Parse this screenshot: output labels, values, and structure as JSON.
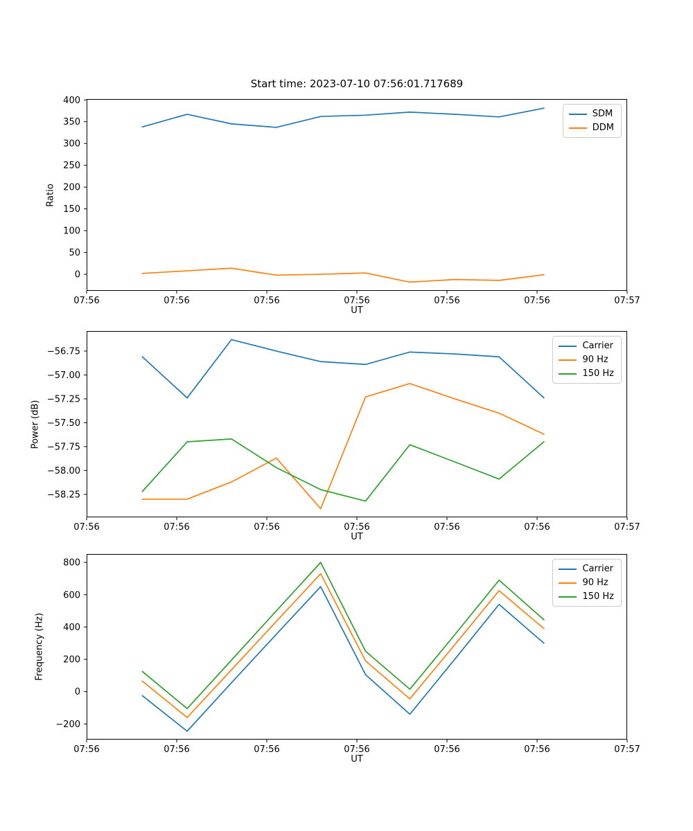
{
  "figure": {
    "title": "Start time: 2023-07-10 07:56:01.717689",
    "background_color": "#ffffff"
  },
  "chart_data": [
    {
      "type": "line",
      "title": "Start time: 2023-07-10 07:56:01.717689",
      "xlabel": "UT",
      "ylabel": "Ratio",
      "grid": false,
      "legend_position": "upper right",
      "x_tick_labels": [
        "07:56",
        "07:56",
        "07:56",
        "07:56",
        "07:56",
        "07:56",
        "07:57"
      ],
      "x": [
        0.103,
        0.186,
        0.268,
        0.351,
        0.433,
        0.516,
        0.598,
        0.681,
        0.763,
        0.846
      ],
      "ylim": [
        -38,
        402
      ],
      "yticks": [
        0,
        50,
        100,
        150,
        200,
        250,
        300,
        350,
        400
      ],
      "ytick_labels": [
        "0",
        "50",
        "100",
        "150",
        "200",
        "250",
        "300",
        "350",
        "400"
      ],
      "series": [
        {
          "name": "SDM",
          "color": "#1f77b4",
          "values": [
            338,
            367,
            345,
            337,
            362,
            365,
            372,
            367,
            361,
            381
          ]
        },
        {
          "name": "DDM",
          "color": "#ff7f0e",
          "values": [
            2,
            8,
            14,
            -2,
            0,
            3,
            -18,
            -12,
            -14,
            -1
          ]
        }
      ]
    },
    {
      "type": "line",
      "title": "",
      "xlabel": "UT",
      "ylabel": "Power (dB)",
      "grid": false,
      "legend_position": "upper right",
      "x_tick_labels": [
        "07:56",
        "07:56",
        "07:56",
        "07:56",
        "07:56",
        "07:56",
        "07:57"
      ],
      "x": [
        0.103,
        0.186,
        0.268,
        0.351,
        0.433,
        0.516,
        0.598,
        0.681,
        0.763,
        0.846
      ],
      "ylim": [
        -58.49,
        -56.54
      ],
      "yticks": [
        -58.25,
        -58.0,
        -57.75,
        -57.5,
        -57.25,
        -57.0,
        -56.75
      ],
      "ytick_labels": [
        "−58.25",
        "−58.00",
        "−57.75",
        "−57.50",
        "−57.25",
        "−57.00",
        "−56.75"
      ],
      "series": [
        {
          "name": "Carrier",
          "color": "#1f77b4",
          "values": [
            -56.81,
            -57.24,
            -56.63,
            -56.75,
            -56.86,
            -56.89,
            -56.76,
            -56.78,
            -56.81,
            -57.24
          ]
        },
        {
          "name": "90 Hz",
          "color": "#ff7f0e",
          "values": [
            -58.3,
            -58.3,
            -58.12,
            -57.87,
            -58.4,
            -57.23,
            -57.09,
            -57.25,
            -57.4,
            -57.62
          ]
        },
        {
          "name": "150 Hz",
          "color": "#2ca02c",
          "values": [
            -58.22,
            -57.7,
            -57.67,
            -57.97,
            -58.2,
            -58.32,
            -57.73,
            -57.91,
            -58.09,
            -57.7
          ]
        }
      ]
    },
    {
      "type": "line",
      "title": "",
      "xlabel": "UT",
      "ylabel": "Frequency (Hz)",
      "grid": false,
      "legend_position": "upper right",
      "x_tick_labels": [
        "07:56",
        "07:56",
        "07:56",
        "07:56",
        "07:56",
        "07:56",
        "07:57"
      ],
      "x": [
        0.103,
        0.186,
        0.268,
        0.351,
        0.433,
        0.516,
        0.598,
        0.681,
        0.763,
        0.846
      ],
      "ylim": [
        -297,
        852
      ],
      "yticks": [
        -200,
        0,
        200,
        400,
        600,
        800
      ],
      "ytick_labels": [
        "−200",
        "0",
        "200",
        "400",
        "600",
        "800"
      ],
      "series": [
        {
          "name": "Carrier",
          "color": "#1f77b4",
          "values": [
            -25,
            -245,
            55,
            355,
            650,
            105,
            -140,
            200,
            540,
            300
          ]
        },
        {
          "name": "90 Hz",
          "color": "#ff7f0e",
          "values": [
            65,
            -160,
            135,
            435,
            730,
            190,
            -45,
            290,
            625,
            390
          ]
        },
        {
          "name": "150 Hz",
          "color": "#2ca02c",
          "values": [
            125,
            -105,
            195,
            500,
            800,
            250,
            15,
            352,
            690,
            445
          ]
        }
      ]
    }
  ]
}
